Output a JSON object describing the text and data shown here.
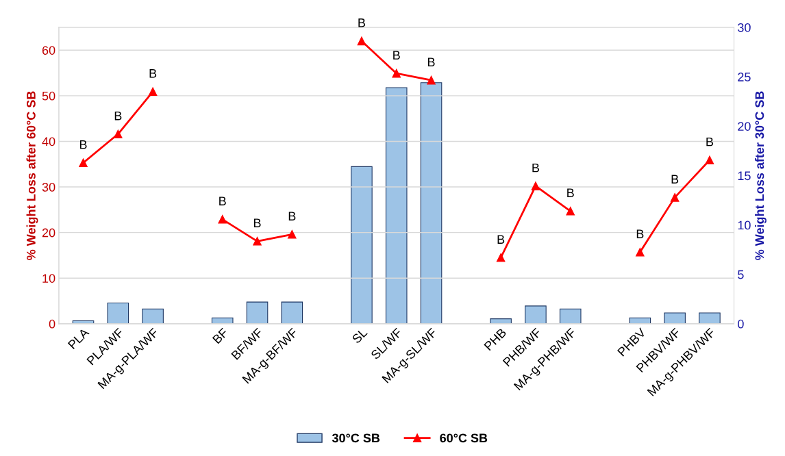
{
  "chart_data": {
    "type": "bar",
    "ylabel": "% Weight Loss after 60°C SB",
    "y2label": "% Weight Loss after 30°C SB",
    "categories": [
      "PLA",
      "PLA/WF",
      "MA-g-PLA/WF",
      null,
      "BF",
      "BF/WF",
      "MA-g-BF/WF",
      null,
      "SL",
      "SL/WF",
      "MA-g-SL/WF",
      null,
      "PHB",
      "PHB/WF",
      "MA-g-PHB/WF",
      null,
      "PHBV",
      "PHBV/WF",
      "MA-g-PHBV/WF"
    ],
    "series": [
      {
        "name": "30°C SB",
        "axis": "y2",
        "color": "#9dc3e6",
        "values": [
          0.3,
          2.1,
          1.5,
          null,
          0.6,
          2.2,
          2.2,
          null,
          15.9,
          23.9,
          24.4,
          null,
          0.5,
          1.8,
          1.5,
          null,
          0.6,
          1.1,
          1.1
        ]
      },
      {
        "name": "60°C SB",
        "type": "line",
        "color": "#ff0000",
        "marker": "triangle",
        "values": [
          35.3,
          41.6,
          50.9,
          null,
          22.9,
          18.1,
          19.6,
          null,
          62.0,
          54.9,
          53.4,
          null,
          14.5,
          30.2,
          24.7,
          null,
          15.7,
          27.7,
          35.9
        ]
      }
    ],
    "ylim": [
      0,
      65
    ],
    "yticks": [
      0,
      10,
      20,
      30,
      40,
      50,
      60
    ],
    "y2lim": [
      0,
      30
    ],
    "y2ticks": [
      0,
      5,
      10,
      15,
      20,
      25,
      30
    ],
    "grid": "y",
    "legend": "bottom",
    "annotations": [
      {
        "text": "B",
        "x": "PLA",
        "y": 35.3
      },
      {
        "text": "B",
        "x": "PLA/WF",
        "y": 41.6
      },
      {
        "text": "B",
        "x": "MA-g-PLA/WF",
        "y": 50.9
      },
      {
        "text": "B",
        "x": "BF",
        "y": 22.9
      },
      {
        "text": "B",
        "x": "BF/WF",
        "y": 18.1
      },
      {
        "text": "B",
        "x": "MA-g-BF/WF",
        "y": 19.6
      },
      {
        "text": "B",
        "x": "SL",
        "y": 62.0
      },
      {
        "text": "B",
        "x": "SL/WF",
        "y": 54.9
      },
      {
        "text": "B",
        "x": "MA-g-SL/WF",
        "y": 53.4
      },
      {
        "text": "B",
        "x": "PHB",
        "y": 14.5
      },
      {
        "text": "B",
        "x": "PHB/WF",
        "y": 30.2
      },
      {
        "text": "B",
        "x": "MA-g-PHB/WF",
        "y": 24.7
      },
      {
        "text": "B",
        "x": "PHBV",
        "y": 15.7
      },
      {
        "text": "B",
        "x": "PHBV/WF",
        "y": 27.7
      },
      {
        "text": "B",
        "x": "MA-g-PHBV/WF",
        "y": 35.9
      }
    ]
  }
}
